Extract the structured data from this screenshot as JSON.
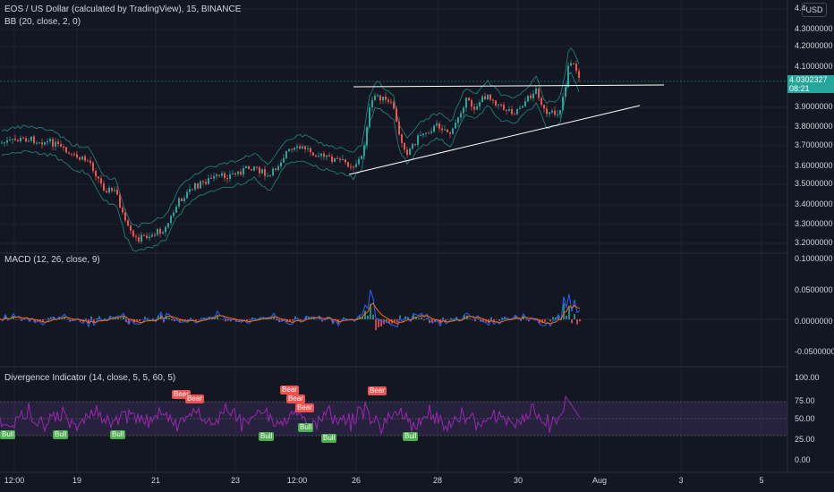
{
  "header": {
    "title": "EOS / US Dollar (calculated by TradingView), 15, BINANCE",
    "bb": "BB (20, close, 2, 0)",
    "macd": "MACD (12, 26, close, 9)",
    "div": "Divergence Indicator (14, close, 5, 5, 60, 5)"
  },
  "currency_button": "USD",
  "price_tag": {
    "price": "4.0302327",
    "countdown": "08:21",
    "color": "#26a69a"
  },
  "price_axis": [
    "4.4",
    "4.3000000",
    "4.2000000",
    "4.1000000",
    "3.9000000",
    "3.8000000",
    "3.7000000",
    "3.6000000",
    "3.5000000",
    "3.4000000",
    "3.3000000",
    "3.2000000"
  ],
  "macd_axis": [
    "0.1000000",
    "0.0500000",
    "0.0000000",
    "-0.0500000"
  ],
  "rsi_axis": [
    "100.00",
    "75.00",
    "50.00",
    "25.00",
    "0.00"
  ],
  "time_axis": [
    "12:00",
    "19",
    "21",
    "23",
    "12:00",
    "26",
    "28",
    "30",
    "Aug",
    "3",
    "5"
  ],
  "labels": {
    "bear": "Bear",
    "bull": "Bull"
  },
  "colors": {
    "background": "#131722",
    "up": "#26a69a",
    "down": "#ef5350",
    "bb_band": "#26a69a",
    "macd_line": "#2962ff",
    "signal_line": "#ff6d00",
    "rsi_line": "#9c27b0",
    "rsi_band": "#7e57c2",
    "trendline": "#ffffff",
    "bull_label": "#4caf50",
    "bear_label": "#ef5350"
  }
}
